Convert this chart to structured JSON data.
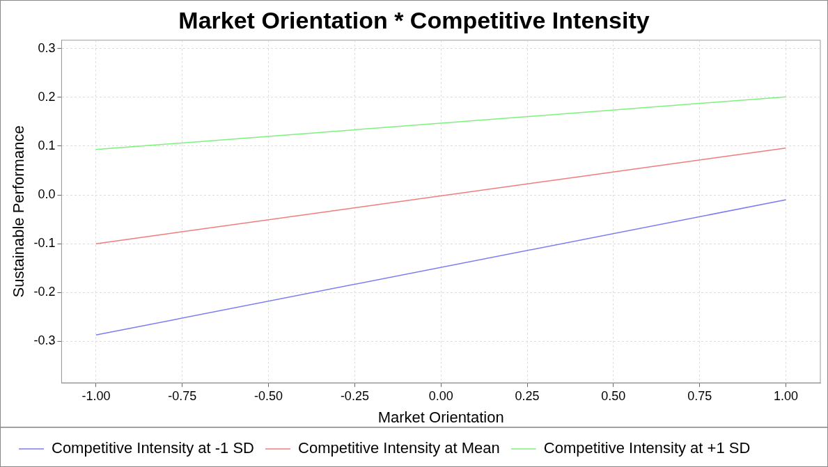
{
  "chart_data": {
    "type": "line",
    "title": "Market Orientation * Competitive Intensity",
    "xlabel": "Market Orientation",
    "ylabel": "Sustainable Performance",
    "x": [
      -1,
      1
    ],
    "series": [
      {
        "name": "Competitive Intensity at -1 SD",
        "color": "#7b7bf5",
        "values": [
          -0.287,
          -0.01
        ]
      },
      {
        "name": "Competitive Intensity at Mean",
        "color": "#f27b7b",
        "values": [
          -0.1,
          0.096
        ]
      },
      {
        "name": "Competitive Intensity at +1 SD",
        "color": "#7bf27b",
        "values": [
          0.093,
          0.201
        ]
      }
    ],
    "xlim": [
      -1.1,
      1.1
    ],
    "xticks": [
      {
        "value": -1,
        "label": "-1.00"
      },
      {
        "value": -0.75,
        "label": "-0.75"
      },
      {
        "value": -0.5,
        "label": "-0.50"
      },
      {
        "value": -0.25,
        "label": "-0.25"
      },
      {
        "value": 0,
        "label": "0.00"
      },
      {
        "value": 0.25,
        "label": "0.25"
      },
      {
        "value": 0.5,
        "label": "0.50"
      },
      {
        "value": 0.75,
        "label": "0.75"
      },
      {
        "value": 1,
        "label": "1.00"
      }
    ],
    "ylim": [
      -0.385,
      0.317
    ],
    "yticks": [
      -0.3,
      -0.2,
      -0.1,
      {
        "value": 0,
        "label": "0.0"
      },
      0.1,
      0.2,
      0.3
    ],
    "grid": true,
    "legend": "bottom",
    "marker": "none",
    "line_style": "solid"
  }
}
